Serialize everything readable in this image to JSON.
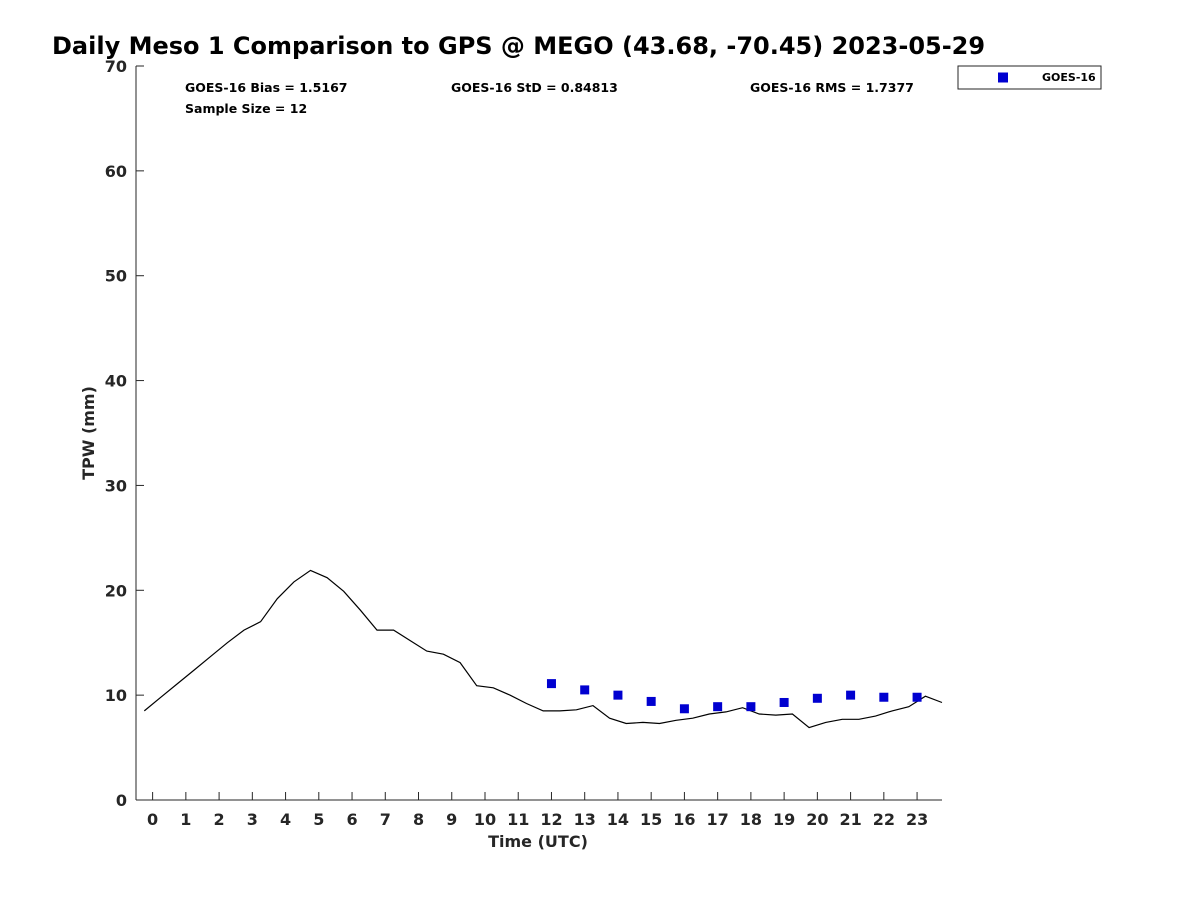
{
  "chart_data": {
    "type": "line",
    "title": "Daily Meso 1 Comparison to GPS @ MEGO (43.68, -70.45) 2023-05-29",
    "xlabel": "Time (UTC)",
    "ylabel": "TPW (mm)",
    "xlim": [
      -0.5,
      23.75
    ],
    "ylim": [
      0,
      70
    ],
    "xticks": [
      0,
      1,
      2,
      3,
      4,
      5,
      6,
      7,
      8,
      9,
      10,
      11,
      12,
      13,
      14,
      15,
      16,
      17,
      18,
      19,
      20,
      21,
      22,
      23
    ],
    "yticks": [
      0,
      10,
      20,
      30,
      40,
      50,
      60,
      70
    ],
    "grid": false,
    "legend_position": "top-right, outside plot",
    "stats": {
      "bias": "GOES-16 Bias = 1.5167",
      "std": "GOES-16 StD = 0.84813",
      "rms": "GOES-16 RMS = 1.7377",
      "sample_size": "Sample Size = 12"
    },
    "series": [
      {
        "marker": "line",
        "color": "#000000",
        "x": [
          -0.25,
          0.25,
          0.75,
          1.25,
          1.75,
          2.25,
          2.75,
          3.25,
          3.75,
          4.25,
          4.75,
          5.25,
          5.75,
          6.25,
          6.75,
          7.25,
          7.75,
          8.25,
          8.75,
          9.25,
          9.75,
          10.25,
          10.75,
          11.25,
          11.75,
          12.25,
          12.75,
          13.25,
          13.75,
          14.25,
          14.75,
          15.25,
          15.75,
          16.25,
          16.75,
          17.25,
          17.75,
          18.25,
          18.75,
          19.25,
          19.75,
          20.25,
          20.75,
          21.25,
          21.75,
          22.25,
          22.75,
          23.25,
          23.75
        ],
        "values": [
          8.5,
          9.8,
          11.1,
          12.4,
          13.7,
          15.0,
          16.2,
          17.0,
          19.2,
          20.8,
          21.9,
          21.2,
          19.9,
          18.1,
          16.2,
          16.2,
          15.2,
          14.2,
          13.9,
          13.1,
          10.9,
          10.7,
          10.0,
          9.2,
          8.5,
          8.5,
          8.6,
          9.0,
          7.8,
          7.3,
          7.4,
          7.3,
          7.6,
          7.8,
          8.2,
          8.4,
          8.8,
          8.2,
          8.1,
          8.2,
          6.9,
          7.4,
          7.7,
          7.7,
          8.0,
          8.5,
          8.9,
          9.9,
          9.3
        ]
      },
      {
        "name": "GOES-16",
        "marker": "square",
        "color": "#0000d0",
        "x": [
          12,
          13,
          14,
          15,
          16,
          17,
          18,
          19,
          20,
          21,
          22,
          23
        ],
        "values": [
          11.1,
          10.5,
          10.0,
          9.4,
          8.7,
          8.9,
          8.9,
          9.3,
          9.7,
          10.0,
          9.8,
          9.8
        ]
      }
    ]
  }
}
